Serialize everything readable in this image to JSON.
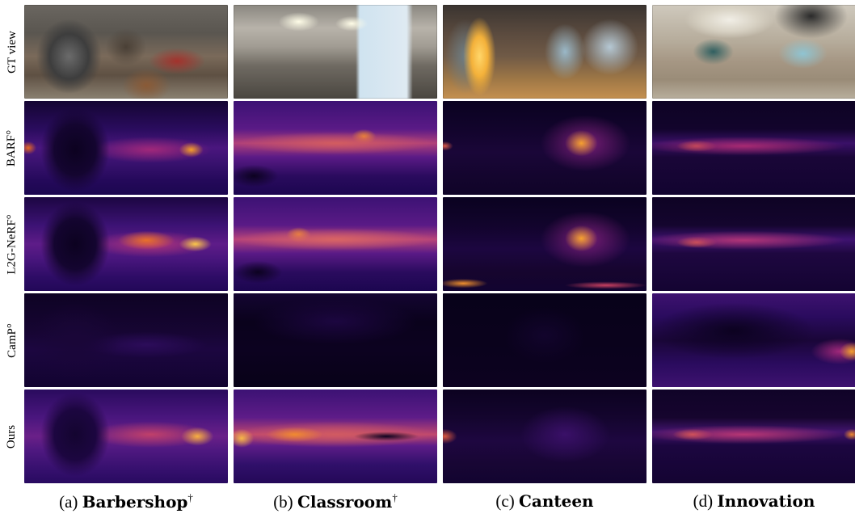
{
  "rows": [
    {
      "id": "gt",
      "label": "GT view"
    },
    {
      "id": "barf",
      "label": "BARF°"
    },
    {
      "id": "l2g",
      "label": "L2G-NeRF°"
    },
    {
      "id": "camp",
      "label": "CamP°"
    },
    {
      "id": "ours",
      "label": "Ours"
    }
  ],
  "columns": [
    {
      "prefix": "(a)",
      "name": "Barbershop",
      "sup": "†"
    },
    {
      "prefix": "(b)",
      "name": "Classroom",
      "sup": "†"
    },
    {
      "prefix": "(c)",
      "name": "Canteen",
      "sup": ""
    },
    {
      "prefix": "(d)",
      "name": "Innovation",
      "sup": ""
    }
  ],
  "colors": {
    "depth_dark": "#0c0220",
    "depth_mid": "#2c0d63",
    "depth_purple": "#5a1a8a",
    "depth_orange": "#f07a1e",
    "depth_yellow": "#fde15a"
  },
  "images": [
    "gt-barbershop-photo",
    "gt-classroom-photo",
    "gt-canteen-photo",
    "gt-innovation-photo",
    "barf-depth-map",
    "l2g-nerf-depth-map",
    "camp-depth-map",
    "ours-depth-map"
  ]
}
